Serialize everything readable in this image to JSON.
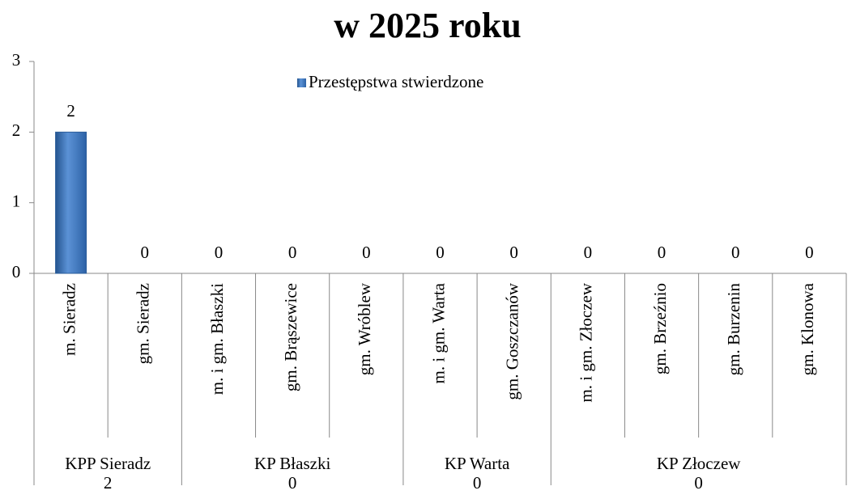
{
  "chart_data": {
    "type": "bar",
    "title": "w 2025 roku",
    "series_name": "Przestępstwa stwierdzone",
    "color": "#3a72b8",
    "ylim": [
      0,
      3
    ],
    "yticks": [
      0,
      1,
      2,
      3
    ],
    "groups": [
      {
        "name": "KPP Sieradz",
        "total": 2,
        "categories": [
          "m. Sieradz",
          "gm. Sieradz"
        ],
        "values": [
          2,
          0
        ]
      },
      {
        "name": "KP Błaszki",
        "total": 0,
        "categories": [
          "m. i gm. Błaszki",
          "gm. Brąszewice",
          "gm. Wróblew"
        ],
        "values": [
          0,
          0,
          0
        ]
      },
      {
        "name": "KP Warta",
        "total": 0,
        "categories": [
          "m. i gm. Warta",
          "gm. Goszczanów"
        ],
        "values": [
          0,
          0
        ]
      },
      {
        "name": "KP Złoczew",
        "total": 0,
        "categories": [
          "m. i gm. Złoczew",
          "gm. Brzeźnio",
          "gm. Burzenin",
          "gm. Klonowa"
        ],
        "values": [
          0,
          0,
          0,
          0
        ]
      }
    ]
  }
}
